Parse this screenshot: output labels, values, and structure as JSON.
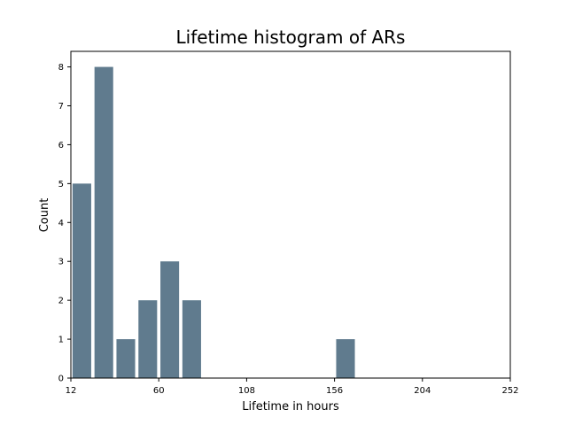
{
  "chart_data": {
    "type": "bar",
    "title": "Lifetime histogram of ARs",
    "xlabel": "Lifetime in hours",
    "ylabel": "Count",
    "xlim": [
      12,
      252
    ],
    "ylim": [
      0,
      8.4
    ],
    "xticks": [
      12,
      60,
      108,
      156,
      204,
      252
    ],
    "yticks": [
      0,
      1,
      2,
      3,
      4,
      5,
      6,
      7,
      8
    ],
    "bin_width": 12,
    "bar_width_fraction": 0.85,
    "bins": [
      {
        "start": 12,
        "value": 5
      },
      {
        "start": 24,
        "value": 8
      },
      {
        "start": 36,
        "value": 1
      },
      {
        "start": 48,
        "value": 2
      },
      {
        "start": 60,
        "value": 3
      },
      {
        "start": 72,
        "value": 2
      },
      {
        "start": 84,
        "value": 0
      },
      {
        "start": 96,
        "value": 0
      },
      {
        "start": 108,
        "value": 0
      },
      {
        "start": 120,
        "value": 0
      },
      {
        "start": 132,
        "value": 0
      },
      {
        "start": 144,
        "value": 0
      },
      {
        "start": 156,
        "value": 1
      },
      {
        "start": 168,
        "value": 0
      },
      {
        "start": 180,
        "value": 0
      },
      {
        "start": 192,
        "value": 0
      },
      {
        "start": 204,
        "value": 0
      },
      {
        "start": 216,
        "value": 0
      },
      {
        "start": 228,
        "value": 0
      },
      {
        "start": 240,
        "value": 0
      }
    ],
    "bar_color": "#607b8e",
    "grid": false,
    "legend": "none"
  }
}
